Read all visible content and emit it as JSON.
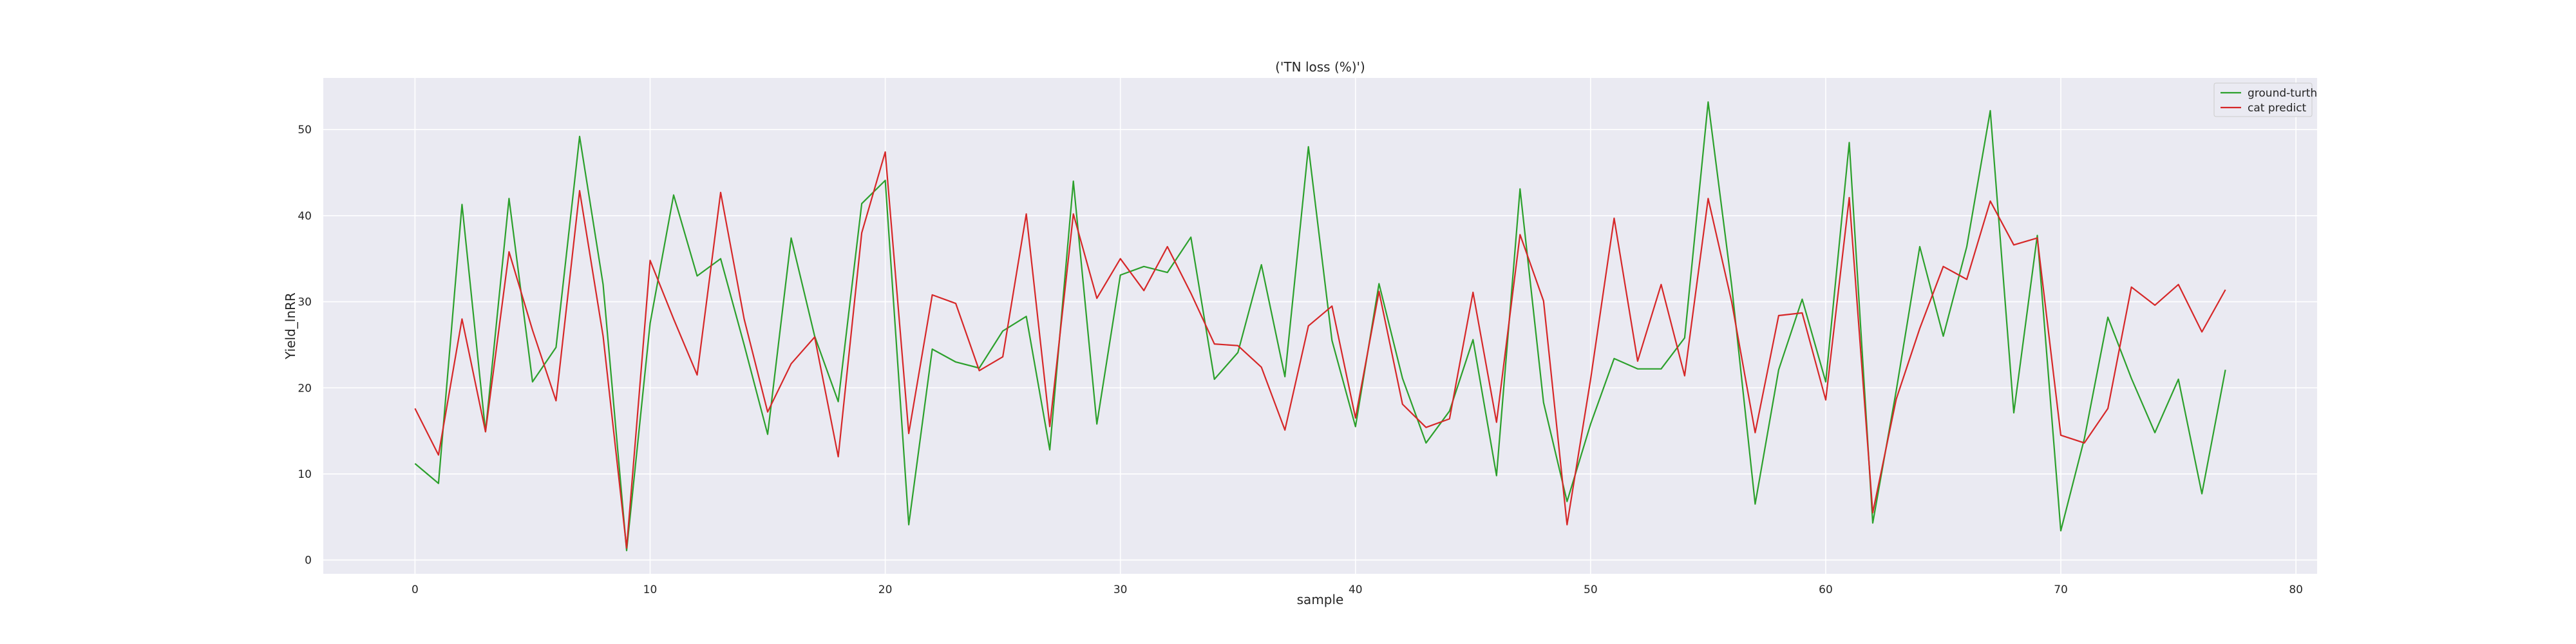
{
  "chart_data": {
    "type": "line",
    "title": "('TN loss (%)')",
    "xlabel": "sample",
    "ylabel": "Yield_lnRR",
    "xlim": [
      -3.9,
      80.9
    ],
    "ylim": [
      -1.6,
      56.0
    ],
    "xticks": [
      0,
      10,
      20,
      30,
      40,
      50,
      60,
      70,
      80
    ],
    "yticks": [
      0,
      10,
      20,
      30,
      40,
      50
    ],
    "grid": true,
    "legend_position": "top-right",
    "x": [
      0,
      1,
      2,
      3,
      4,
      5,
      6,
      7,
      8,
      9,
      10,
      11,
      12,
      13,
      14,
      15,
      16,
      17,
      18,
      19,
      20,
      21,
      22,
      23,
      24,
      25,
      26,
      27,
      28,
      29,
      30,
      31,
      32,
      33,
      34,
      35,
      36,
      37,
      38,
      39,
      40,
      41,
      42,
      43,
      44,
      45,
      46,
      47,
      48,
      49,
      50,
      51,
      52,
      53,
      54,
      55,
      56,
      57,
      58,
      59,
      60,
      61,
      62,
      63,
      64,
      65,
      66,
      67,
      68,
      69,
      70,
      71,
      72,
      73,
      74,
      75,
      76,
      77
    ],
    "series": [
      {
        "name": "ground-turth",
        "color": "#2ca02c",
        "values": [
          11.2,
          8.9,
          41.3,
          14.9,
          42.0,
          20.7,
          24.7,
          49.2,
          32.0,
          1.1,
          27.5,
          42.4,
          33.0,
          35.0,
          25.0,
          14.6,
          37.4,
          26.0,
          18.4,
          41.4,
          44.1,
          4.1,
          24.5,
          23.0,
          22.3,
          26.6,
          28.3,
          12.8,
          44.0,
          15.8,
          33.1,
          34.1,
          33.4,
          37.5,
          21.0,
          24.1,
          34.3,
          21.3,
          48.0,
          25.5,
          15.5,
          32.1,
          21.1,
          13.6,
          17.3,
          25.6,
          9.8,
          43.1,
          18.3,
          6.8,
          15.8,
          23.4,
          22.2,
          22.2,
          25.8,
          53.2,
          31.9,
          6.5,
          22.1,
          30.3,
          20.7,
          48.5,
          4.3,
          19.7,
          36.4,
          26.0,
          36.4,
          52.2,
          17.1,
          37.7,
          3.4,
          14.1,
          28.2,
          21.1,
          14.8,
          21.0,
          7.7,
          22.1
        ]
      },
      {
        "name": "cat predict",
        "color": "#d62728",
        "values": [
          17.6,
          12.2,
          28.0,
          14.9,
          35.8,
          26.7,
          18.5,
          42.9,
          26.0,
          1.4,
          34.8,
          28.0,
          21.5,
          42.7,
          28.0,
          17.2,
          22.8,
          25.9,
          12.0,
          38.0,
          47.4,
          14.7,
          30.8,
          29.8,
          22.0,
          23.6,
          40.2,
          15.5,
          40.2,
          30.4,
          35.0,
          31.3,
          36.4,
          31.0,
          25.1,
          24.9,
          22.4,
          15.1,
          27.2,
          29.5,
          16.5,
          31.2,
          18.1,
          15.4,
          16.4,
          31.1,
          16.0,
          37.8,
          30.1,
          4.1,
          21.0,
          39.7,
          23.1,
          32.0,
          21.4,
          42.0,
          30.0,
          14.8,
          28.4,
          28.7,
          18.6,
          42.1,
          5.5,
          18.7,
          26.9,
          34.1,
          32.6,
          41.7,
          36.6,
          37.4,
          14.5,
          13.6,
          17.6,
          31.7,
          29.6,
          32.0,
          26.5,
          31.4
        ]
      }
    ]
  }
}
